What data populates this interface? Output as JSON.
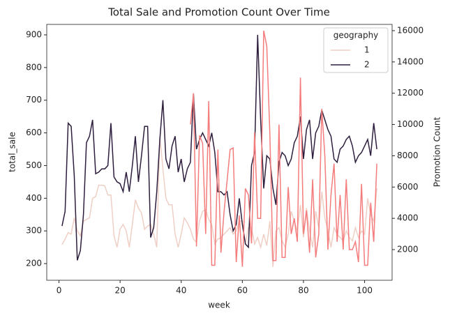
{
  "chart_data": {
    "type": "line",
    "title": "Total Sale and Promotion Count Over Time",
    "x_label": "week",
    "y_label": "total_sale",
    "y2_label": "Promotion Count",
    "x": [
      1,
      2,
      3,
      4,
      5,
      6,
      7,
      8,
      9,
      10,
      11,
      12,
      13,
      14,
      15,
      16,
      17,
      18,
      19,
      20,
      21,
      22,
      23,
      24,
      25,
      26,
      27,
      28,
      29,
      30,
      31,
      32,
      33,
      34,
      35,
      36,
      37,
      38,
      39,
      40,
      41,
      42,
      43,
      44,
      45,
      46,
      47,
      48,
      49,
      50,
      51,
      52,
      53,
      54,
      55,
      56,
      57,
      58,
      59,
      60,
      61,
      62,
      63,
      64,
      65,
      66,
      67,
      68,
      69,
      70,
      71,
      72,
      73,
      74,
      75,
      76,
      77,
      78,
      79,
      80,
      81,
      82,
      83,
      84,
      85,
      86,
      87,
      88,
      89,
      90,
      91,
      92,
      93,
      94,
      95,
      96,
      97,
      98,
      99,
      100,
      101,
      102,
      103,
      104
    ],
    "series": [
      {
        "name": "1",
        "color": "#efcfc5",
        "values": [
          258,
          275,
          295,
          290,
          340,
          300,
          285,
          330,
          335,
          340,
          400,
          405,
          440,
          440,
          438,
          410,
          410,
          285,
          250,
          305,
          320,
          300,
          250,
          320,
          395,
          370,
          355,
          305,
          315,
          320,
          290,
          250,
          590,
          490,
          400,
          380,
          380,
          290,
          250,
          290,
          340,
          325,
          305,
          275,
          265,
          330,
          360,
          365,
          335,
          320,
          260,
          275,
          280,
          290,
          300,
          310,
          290,
          300,
          330,
          330,
          260,
          310,
          310,
          260,
          280,
          250,
          290,
          255,
          330,
          190,
          300,
          310,
          270,
          250,
          290,
          360,
          330,
          300,
          380,
          280,
          370,
          300,
          250,
          360,
          310,
          420,
          340,
          300,
          250,
          310,
          290,
          280,
          270,
          300,
          280,
          270,
          310,
          280,
          300,
          290,
          400,
          350,
          330,
          430
        ]
      },
      {
        "name": "2",
        "color": "#2d1e3e",
        "values": [
          315,
          360,
          630,
          620,
          470,
          210,
          240,
          350,
          570,
          590,
          640,
          475,
          480,
          490,
          490,
          500,
          630,
          465,
          450,
          445,
          420,
          480,
          420,
          500,
          590,
          450,
          530,
          620,
          620,
          280,
          310,
          420,
          580,
          700,
          520,
          490,
          560,
          590,
          480,
          520,
          450,
          490,
          510,
          720,
          550,
          580,
          600,
          580,
          560,
          600,
          540,
          420,
          420,
          410,
          420,
          350,
          300,
          320,
          400,
          320,
          260,
          250,
          500,
          540,
          900,
          640,
          430,
          530,
          520,
          430,
          380,
          510,
          540,
          530,
          500,
          520,
          570,
          590,
          650,
          520,
          610,
          640,
          520,
          600,
          620,
          670,
          640,
          610,
          590,
          520,
          510,
          550,
          560,
          580,
          590,
          560,
          510,
          530,
          540,
          560,
          580,
          530,
          630,
          550
        ]
      },
      {
        "color": "#f47c7c",
        "axis": "y2",
        "values": [
          null,
          null,
          null,
          null,
          null,
          null,
          null,
          null,
          null,
          null,
          null,
          null,
          null,
          null,
          null,
          null,
          null,
          null,
          null,
          null,
          null,
          null,
          null,
          null,
          null,
          null,
          null,
          null,
          null,
          null,
          null,
          null,
          null,
          null,
          null,
          null,
          null,
          null,
          null,
          null,
          null,
          null,
          10000,
          12000,
          2200,
          9300,
          8800,
          3000,
          11500,
          1000,
          1000,
          8400,
          1800,
          4400,
          6400,
          8400,
          8500,
          1200,
          4200,
          900,
          5900,
          5500,
          2400,
          9500,
          4000,
          4000,
          16000,
          15000,
          9400,
          1300,
          1300,
          10000,
          1500,
          1500,
          6000,
          3000,
          4000,
          2500,
          13000,
          3000,
          4500,
          1800,
          6500,
          1500,
          3000,
          11000,
          8000,
          2000,
          5500,
          7500,
          2500,
          5500,
          2000,
          6500,
          2000,
          2000,
          2500,
          1200,
          6200,
          1000,
          1000,
          5000,
          2500,
          7500
        ]
      }
    ],
    "xlim": [
      -4,
      109
    ],
    "xticks": [
      0,
      20,
      40,
      60,
      80,
      100
    ],
    "ylim": [
      149,
      932
    ],
    "yticks": [
      200,
      300,
      400,
      500,
      600,
      700,
      800,
      900
    ],
    "y2lim": [
      40,
      16400
    ],
    "y2ticks": [
      2000,
      4000,
      6000,
      8000,
      10000,
      12000,
      14000,
      16000
    ],
    "legend": {
      "title": "geography",
      "loc": "upper right"
    }
  }
}
